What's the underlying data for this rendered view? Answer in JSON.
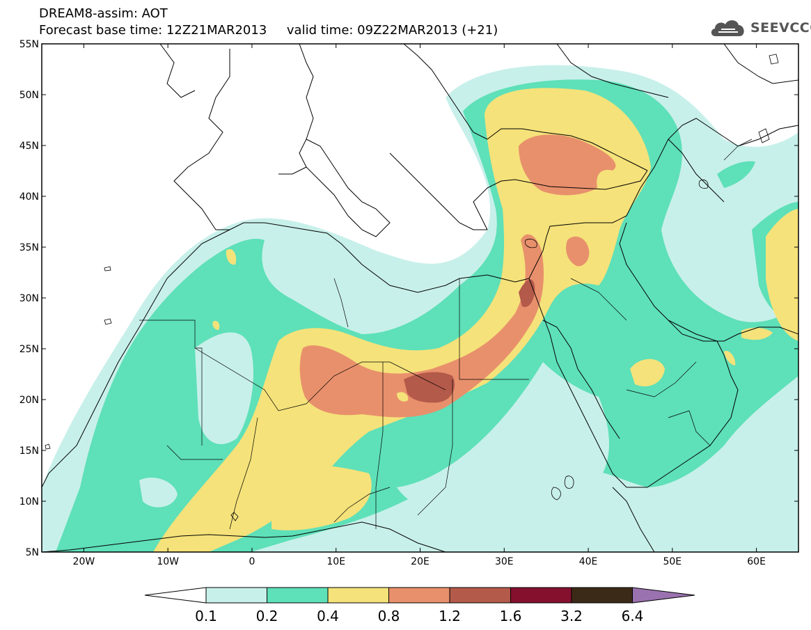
{
  "header": {
    "title": "DREAM8-assim: AOT",
    "base_label": "Forecast base time: 12Z21MAR2013",
    "valid_label": "valid time: 09Z22MAR2013 (+21)"
  },
  "logo": {
    "text": "SEEVCCC",
    "icon": "cloud-icon"
  },
  "map": {
    "type": "filled-contour-map",
    "variable": "AOT",
    "lon_range": [
      -25,
      65
    ],
    "lat_range": [
      5,
      55
    ],
    "lat_ticks": [
      "5N",
      "10N",
      "15N",
      "20N",
      "25N",
      "30N",
      "35N",
      "40N",
      "45N",
      "50N",
      "55N"
    ],
    "lon_ticks": [
      "20W",
      "10W",
      "0",
      "10E",
      "20E",
      "30E",
      "40E",
      "50E",
      "60E"
    ],
    "colors": {
      "level_0.1": "#c8f0ea",
      "level_0.2": "#5ee0b8",
      "level_0.4": "#f5e27a",
      "level_0.8": "#e8906c",
      "level_1.2": "#b45a4a",
      "level_1.6": "#84102e",
      "level_3.2": "#3c2a18",
      "level_6.4": "#9a72b0",
      "coastline": "#000000"
    }
  },
  "colorbar": {
    "labels": [
      "0.1",
      "0.2",
      "0.4",
      "0.8",
      "1.2",
      "1.6",
      "3.2",
      "6.4"
    ],
    "colors": [
      "#c8f0ea",
      "#5ee0b8",
      "#f5e27a",
      "#e8906c",
      "#b45a4a",
      "#84102e",
      "#3c2a18"
    ],
    "under_color": "#ffffff",
    "over_color": "#9a72b0"
  }
}
